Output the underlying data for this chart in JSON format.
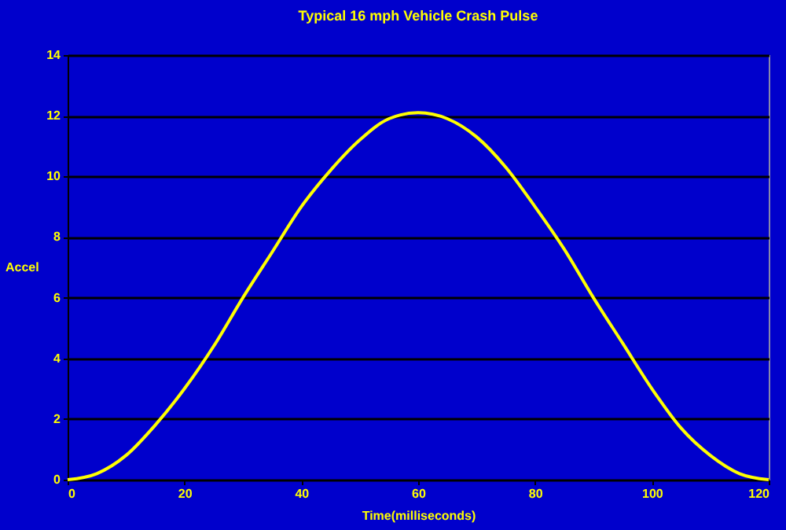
{
  "chart_data": {
    "type": "line",
    "title": "Typical 16 mph Vehicle Crash Pulse",
    "xlabel": "Time(milliseconds)",
    "ylabel": "Accel",
    "x": [
      0,
      5,
      10,
      15,
      20,
      25,
      30,
      35,
      40,
      45,
      50,
      55,
      60,
      65,
      70,
      75,
      80,
      85,
      90,
      95,
      100,
      105,
      110,
      115,
      120
    ],
    "series": [
      {
        "color": "#ffff00",
        "values": [
          0,
          0.2,
          0.8,
          1.8,
          3.0,
          4.4,
          6.0,
          7.5,
          9.0,
          10.2,
          11.2,
          11.9,
          12.1,
          11.9,
          11.3,
          10.3,
          9.0,
          7.6,
          6.0,
          4.5,
          3.0,
          1.7,
          0.8,
          0.2,
          0
        ]
      }
    ],
    "xlim": [
      0,
      120
    ],
    "xticks": [
      0,
      20,
      40,
      60,
      80,
      100,
      120
    ],
    "ylim": [
      0,
      14
    ],
    "yticks": [
      0,
      2,
      4,
      6,
      8,
      10,
      12,
      14
    ],
    "grid": "y",
    "marker": "none",
    "line_style": "solid"
  }
}
